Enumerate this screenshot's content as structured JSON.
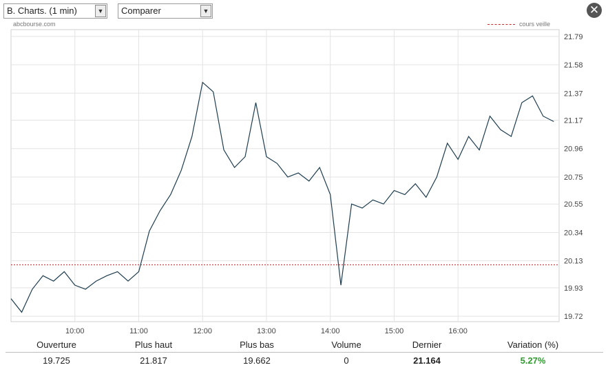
{
  "controls": {
    "period_select": "B. Charts. (1 min)",
    "compare_select": "Comparer"
  },
  "source_label": "abcbourse.com",
  "legend": {
    "previous_close_label": "cours veille"
  },
  "colors": {
    "price_line": "#1d3c4e",
    "previous_close": "#c0262a",
    "grid": "#e3e3e3",
    "positive": "#2e9a2e"
  },
  "chart_data": {
    "type": "line",
    "x": [
      "09:00",
      "09:10",
      "09:20",
      "09:30",
      "09:40",
      "09:50",
      "10:00",
      "10:10",
      "10:20",
      "10:30",
      "10:40",
      "10:50",
      "11:00",
      "11:10",
      "11:20",
      "11:30",
      "11:40",
      "11:50",
      "12:00",
      "12:10",
      "12:20",
      "12:30",
      "12:40",
      "12:50",
      "13:00",
      "13:10",
      "13:20",
      "13:30",
      "13:40",
      "13:50",
      "14:00",
      "14:10",
      "14:20",
      "14:30",
      "14:40",
      "14:50",
      "15:00",
      "15:10",
      "15:20",
      "15:30",
      "15:40",
      "15:50",
      "16:00",
      "16:10",
      "16:20",
      "16:30",
      "16:40",
      "16:50",
      "17:00",
      "17:10",
      "17:20",
      "17:30"
    ],
    "series": [
      {
        "values": [
          19.85,
          19.75,
          19.92,
          20.02,
          19.98,
          20.05,
          19.95,
          19.92,
          19.98,
          20.02,
          20.05,
          19.98,
          20.05,
          20.35,
          20.5,
          20.62,
          20.8,
          21.05,
          21.45,
          21.38,
          20.95,
          20.82,
          20.9,
          21.3,
          20.9,
          20.85,
          20.75,
          20.78,
          20.72,
          20.82,
          20.62,
          19.95,
          20.55,
          20.52,
          20.58,
          20.55,
          20.65,
          20.62,
          20.7,
          20.6,
          20.75,
          21.0,
          20.88,
          21.05,
          20.95,
          21.2,
          21.1,
          21.05,
          21.3,
          21.35,
          21.2,
          21.16
        ]
      }
    ],
    "x_ticks": [
      "10:00",
      "11:00",
      "12:00",
      "13:00",
      "14:00",
      "15:00",
      "16:00"
    ],
    "y_ticks": [
      19.72,
      19.93,
      20.13,
      20.34,
      20.55,
      20.75,
      20.96,
      21.17,
      21.37,
      21.58,
      21.79
    ],
    "ylim": [
      19.68,
      21.84
    ],
    "previous_close": 20.1,
    "grid": true,
    "y_axis_position": "right"
  },
  "stats": {
    "labels": [
      "Ouverture",
      "Plus haut",
      "Plus bas",
      "Volume",
      "Dernier",
      "Variation (%)"
    ],
    "values": [
      "19.725",
      "21.817",
      "19.662",
      "0",
      "21.164",
      "5.27%"
    ]
  }
}
